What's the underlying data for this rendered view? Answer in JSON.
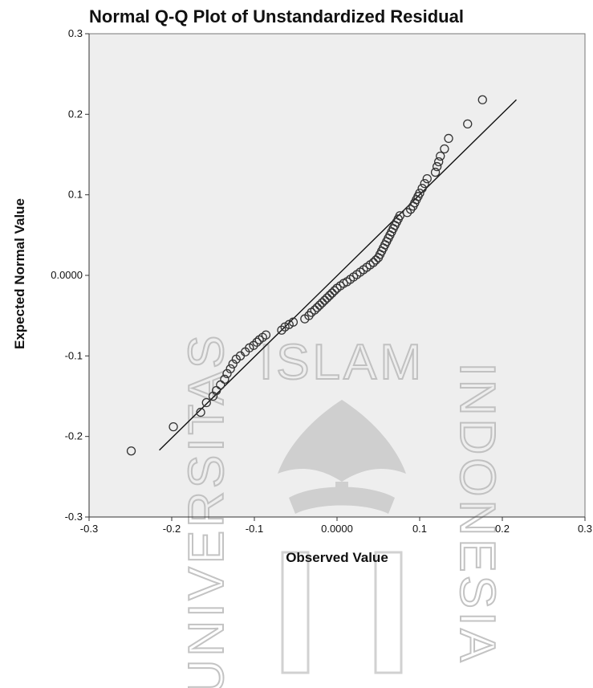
{
  "chart_data": {
    "type": "scatter",
    "title": "Normal Q-Q Plot of Unstandardized Residual",
    "xlabel": "Observed Value",
    "ylabel": "Expected Normal Value",
    "xlim": [
      -0.3,
      0.3
    ],
    "ylim": [
      -0.3,
      0.3
    ],
    "xticks": [
      {
        "value": -0.3,
        "label": "-0.3"
      },
      {
        "value": -0.2,
        "label": "-0.2"
      },
      {
        "value": -0.1,
        "label": "-0.1"
      },
      {
        "value": 0.0,
        "label": "0.0000"
      },
      {
        "value": 0.1,
        "label": "0.1"
      },
      {
        "value": 0.2,
        "label": "0.2"
      },
      {
        "value": 0.3,
        "label": "0.3"
      }
    ],
    "yticks": [
      {
        "value": -0.3,
        "label": "-0.3"
      },
      {
        "value": -0.2,
        "label": "-0.2"
      },
      {
        "value": -0.1,
        "label": "-0.1"
      },
      {
        "value": 0.0,
        "label": "0.0000"
      },
      {
        "value": 0.1,
        "label": "0.1"
      },
      {
        "value": 0.2,
        "label": "0.2"
      },
      {
        "value": 0.3,
        "label": "0.3"
      }
    ],
    "grid": false,
    "plot_background": "#eeeeee",
    "marker_color": "#333333",
    "reference_line": {
      "x": [
        -0.215,
        0.217
      ],
      "y": [
        -0.217,
        0.218
      ],
      "color": "#111111"
    },
    "points": [
      {
        "x": -0.249,
        "y": -0.218
      },
      {
        "x": -0.198,
        "y": -0.188
      },
      {
        "x": -0.165,
        "y": -0.17
      },
      {
        "x": -0.158,
        "y": -0.158
      },
      {
        "x": -0.15,
        "y": -0.15
      },
      {
        "x": -0.146,
        "y": -0.143
      },
      {
        "x": -0.141,
        "y": -0.136
      },
      {
        "x": -0.136,
        "y": -0.129
      },
      {
        "x": -0.133,
        "y": -0.122
      },
      {
        "x": -0.129,
        "y": -0.116
      },
      {
        "x": -0.126,
        "y": -0.11
      },
      {
        "x": -0.122,
        "y": -0.104
      },
      {
        "x": -0.117,
        "y": -0.1
      },
      {
        "x": -0.111,
        "y": -0.095
      },
      {
        "x": -0.106,
        "y": -0.09
      },
      {
        "x": -0.101,
        "y": -0.087
      },
      {
        "x": -0.097,
        "y": -0.083
      },
      {
        "x": -0.094,
        "y": -0.08
      },
      {
        "x": -0.09,
        "y": -0.077
      },
      {
        "x": -0.086,
        "y": -0.074
      },
      {
        "x": -0.067,
        "y": -0.068
      },
      {
        "x": -0.063,
        "y": -0.064
      },
      {
        "x": -0.058,
        "y": -0.061
      },
      {
        "x": -0.053,
        "y": -0.058
      },
      {
        "x": -0.039,
        "y": -0.054
      },
      {
        "x": -0.034,
        "y": -0.05
      },
      {
        "x": -0.031,
        "y": -0.046
      },
      {
        "x": -0.027,
        "y": -0.043
      },
      {
        "x": -0.024,
        "y": -0.04
      },
      {
        "x": -0.021,
        "y": -0.037
      },
      {
        "x": -0.018,
        "y": -0.034
      },
      {
        "x": -0.015,
        "y": -0.031
      },
      {
        "x": -0.012,
        "y": -0.028
      },
      {
        "x": -0.009,
        "y": -0.025
      },
      {
        "x": -0.006,
        "y": -0.022
      },
      {
        "x": -0.003,
        "y": -0.019
      },
      {
        "x": 0.0,
        "y": -0.016
      },
      {
        "x": 0.004,
        "y": -0.013
      },
      {
        "x": 0.008,
        "y": -0.01
      },
      {
        "x": 0.012,
        "y": -0.008
      },
      {
        "x": 0.016,
        "y": -0.005
      },
      {
        "x": 0.02,
        "y": -0.002
      },
      {
        "x": 0.024,
        "y": 0.001
      },
      {
        "x": 0.028,
        "y": 0.004
      },
      {
        "x": 0.032,
        "y": 0.007
      },
      {
        "x": 0.036,
        "y": 0.01
      },
      {
        "x": 0.04,
        "y": 0.013
      },
      {
        "x": 0.044,
        "y": 0.016
      },
      {
        "x": 0.047,
        "y": 0.019
      },
      {
        "x": 0.05,
        "y": 0.022
      },
      {
        "x": 0.052,
        "y": 0.026
      },
      {
        "x": 0.054,
        "y": 0.03
      },
      {
        "x": 0.056,
        "y": 0.034
      },
      {
        "x": 0.058,
        "y": 0.038
      },
      {
        "x": 0.06,
        "y": 0.042
      },
      {
        "x": 0.062,
        "y": 0.046
      },
      {
        "x": 0.064,
        "y": 0.05
      },
      {
        "x": 0.066,
        "y": 0.054
      },
      {
        "x": 0.068,
        "y": 0.058
      },
      {
        "x": 0.07,
        "y": 0.062
      },
      {
        "x": 0.072,
        "y": 0.066
      },
      {
        "x": 0.074,
        "y": 0.07
      },
      {
        "x": 0.076,
        "y": 0.074
      },
      {
        "x": 0.085,
        "y": 0.078
      },
      {
        "x": 0.089,
        "y": 0.082
      },
      {
        "x": 0.092,
        "y": 0.086
      },
      {
        "x": 0.094,
        "y": 0.09
      },
      {
        "x": 0.096,
        "y": 0.094
      },
      {
        "x": 0.098,
        "y": 0.098
      },
      {
        "x": 0.1,
        "y": 0.102
      },
      {
        "x": 0.103,
        "y": 0.108
      },
      {
        "x": 0.106,
        "y": 0.114
      },
      {
        "x": 0.109,
        "y": 0.12
      },
      {
        "x": 0.119,
        "y": 0.128
      },
      {
        "x": 0.121,
        "y": 0.135
      },
      {
        "x": 0.123,
        "y": 0.141
      },
      {
        "x": 0.125,
        "y": 0.148
      },
      {
        "x": 0.13,
        "y": 0.157
      },
      {
        "x": 0.135,
        "y": 0.17
      },
      {
        "x": 0.158,
        "y": 0.188
      },
      {
        "x": 0.176,
        "y": 0.218
      }
    ]
  },
  "watermark": {
    "top": "ISLAM",
    "left": "UNIVERSITAS",
    "right": "INDONESIA"
  }
}
